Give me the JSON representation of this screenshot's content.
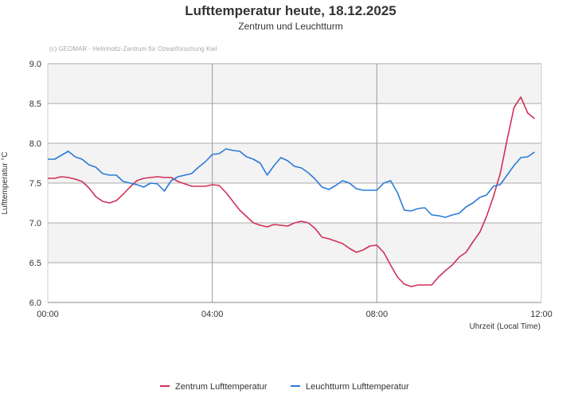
{
  "chart_data": {
    "type": "line",
    "title": "Lufttemperatur heute, 18.12.2025",
    "subtitle": "Zentrum und Leuchtturm",
    "credit": "(c) GEOMAR - Helmholtz-Zentrum für Ozeanforschung Kiel",
    "xlabel": "Uhrzeit (Local Time)",
    "ylabel": "Lufttemperatur °C",
    "xlim_hours": [
      0,
      12
    ],
    "ylim": [
      6.0,
      9.0
    ],
    "x_ticks": [
      "00:00",
      "04:00",
      "08:00",
      "12:00"
    ],
    "y_ticks": [
      "6.0",
      "6.5",
      "7.0",
      "7.5",
      "8.0",
      "8.5",
      "9.0"
    ],
    "grid": true,
    "legend_position": "bottom",
    "x_interval_minutes": 10,
    "x_start": "00:00",
    "series": [
      {
        "name": "Zentrum Lufttemperatur",
        "color": "#d03058",
        "values": [
          7.56,
          7.56,
          7.58,
          7.57,
          7.55,
          7.52,
          7.44,
          7.33,
          7.27,
          7.25,
          7.28,
          7.36,
          7.45,
          7.53,
          7.56,
          7.57,
          7.58,
          7.57,
          7.57,
          7.52,
          7.49,
          7.46,
          7.46,
          7.46,
          7.48,
          7.47,
          7.38,
          7.27,
          7.16,
          7.08,
          7.0,
          6.97,
          6.95,
          6.98,
          6.97,
          6.96,
          7.0,
          7.02,
          7.0,
          6.93,
          6.82,
          6.8,
          6.77,
          6.74,
          6.68,
          6.63,
          6.66,
          6.71,
          6.72,
          6.63,
          6.47,
          6.32,
          6.23,
          6.2,
          6.22,
          6.22,
          6.22,
          6.32,
          6.4,
          6.47,
          6.57,
          6.63,
          6.76,
          6.88,
          7.08,
          7.33,
          7.62,
          8.04,
          8.45,
          8.58,
          8.38,
          8.31
        ]
      },
      {
        "name": "Leuchtturm Lufttemperatur",
        "color": "#2a7ad8",
        "values": [
          7.8,
          7.8,
          7.85,
          7.9,
          7.83,
          7.8,
          7.73,
          7.7,
          7.62,
          7.6,
          7.6,
          7.52,
          7.5,
          7.48,
          7.45,
          7.5,
          7.49,
          7.4,
          7.53,
          7.58,
          7.6,
          7.62,
          7.7,
          7.77,
          7.86,
          7.87,
          7.93,
          7.91,
          7.9,
          7.83,
          7.8,
          7.75,
          7.6,
          7.72,
          7.82,
          7.78,
          7.71,
          7.69,
          7.63,
          7.55,
          7.45,
          7.42,
          7.47,
          7.53,
          7.5,
          7.43,
          7.41,
          7.41,
          7.41,
          7.5,
          7.53,
          7.38,
          7.16,
          7.15,
          7.18,
          7.19,
          7.1,
          7.09,
          7.07,
          7.1,
          7.12,
          7.2,
          7.25,
          7.32,
          7.35,
          7.46,
          7.48,
          7.6,
          7.72,
          7.82,
          7.83,
          7.89
        ]
      }
    ]
  }
}
